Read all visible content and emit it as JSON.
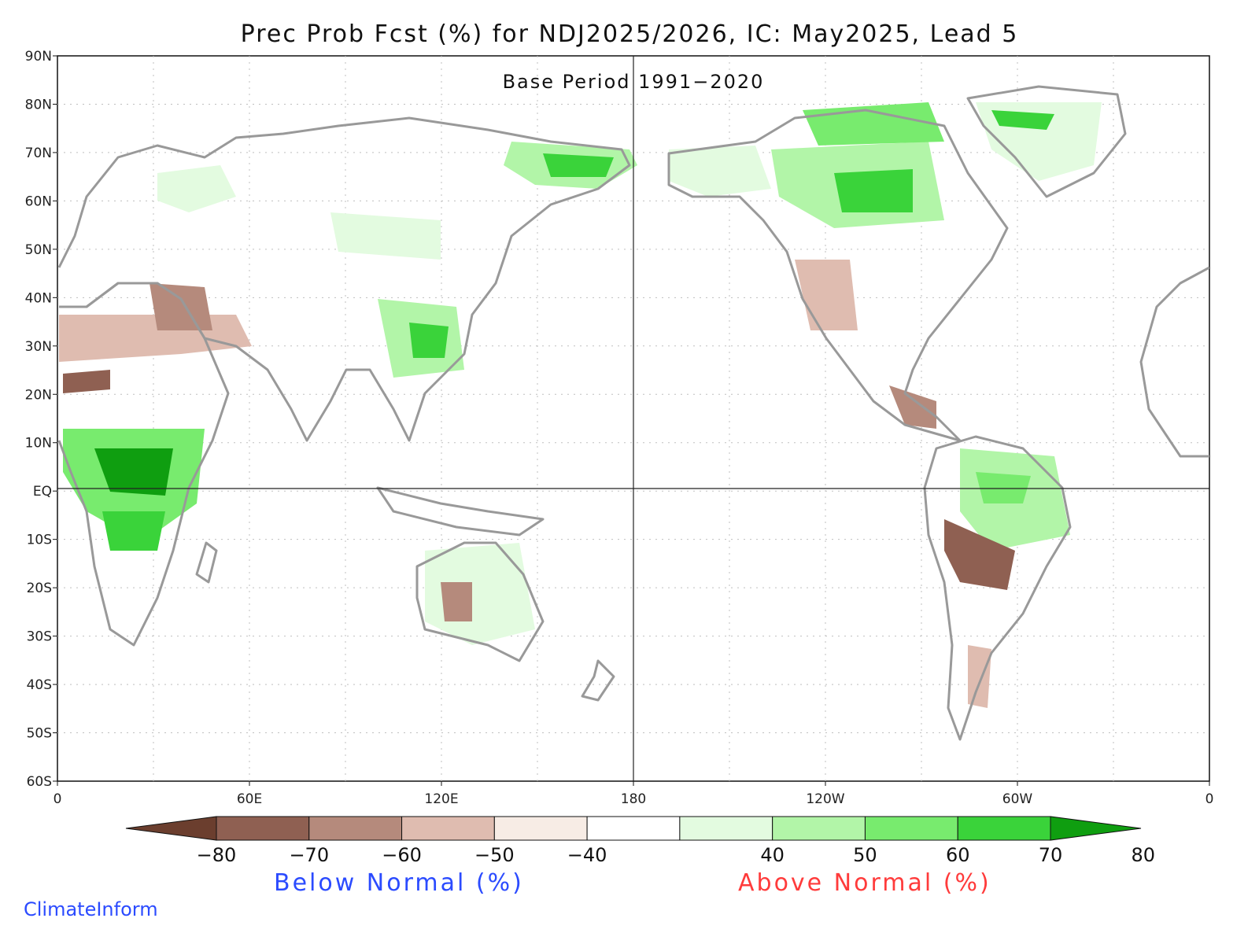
{
  "title": "Prec Prob Fcst (%) for NDJ2025/2026, IC: May2025, Lead 5",
  "subtitle": "Base Period 1991−2020",
  "lat_ticks": [
    "90N",
    "80N",
    "70N",
    "60N",
    "50N",
    "40N",
    "30N",
    "20N",
    "10N",
    "EQ",
    "10S",
    "20S",
    "30S",
    "40S",
    "50S",
    "60S"
  ],
  "lon_ticks": [
    "0",
    "60E",
    "120E",
    "180",
    "120W",
    "60W",
    "0"
  ],
  "colorbar": {
    "tick_labels": [
      "−80",
      "−70",
      "−60",
      "−50",
      "−40",
      "40",
      "50",
      "60",
      "70",
      "80"
    ],
    "colors": [
      "#6b3e2e",
      "#8f6052",
      "#b58a7c",
      "#dfbcb0",
      "#f7ece5",
      "#ffffff",
      "#e3fbe0",
      "#b2f5a8",
      "#78eb6e",
      "#3ad33a",
      "#0f9e10"
    ]
  },
  "legend": {
    "below_label": "Below Normal (%)",
    "above_label": "Above Normal (%)"
  },
  "brand": "ClimateInform",
  "colors": {
    "below_text": "#2b4bff",
    "above_text": "#ff3b3b",
    "land_outline": "#999999"
  }
}
